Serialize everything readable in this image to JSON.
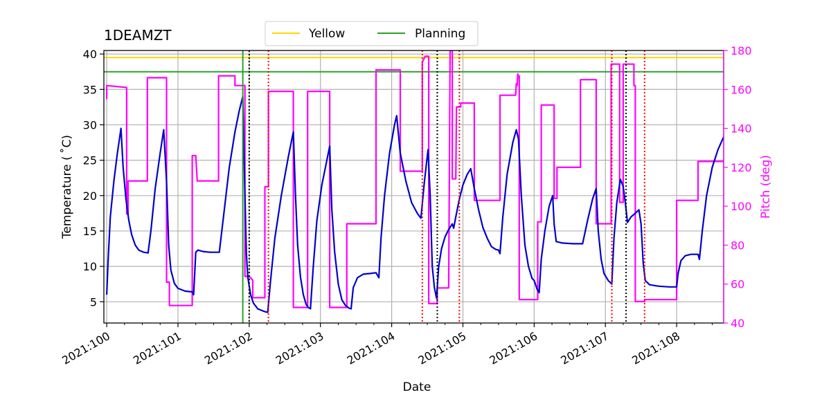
{
  "chart_data": {
    "type": "line",
    "title": "1DEAMZT",
    "xlabel": "Date",
    "ylabel_left": "Temperature ($^\\circ$C)",
    "ylabel_left_display": "Temperature ( ˚C)",
    "ylabel_right": "Pitch (deg)",
    "xlim": [
      99.96,
      108.66
    ],
    "ylim_left": [
      2,
      40.5
    ],
    "ylim_right": [
      40,
      180
    ],
    "grid": true,
    "legend_position": "top-center",
    "x_ticks": [
      {
        "value": 100,
        "label": "2021:100"
      },
      {
        "value": 101,
        "label": "2021:101"
      },
      {
        "value": 102,
        "label": "2021:102"
      },
      {
        "value": 103,
        "label": "2021:103"
      },
      {
        "value": 104,
        "label": "2021:104"
      },
      {
        "value": 105,
        "label": "2021:105"
      },
      {
        "value": 106,
        "label": "2021:106"
      },
      {
        "value": 107,
        "label": "2021:107"
      },
      {
        "value": 108,
        "label": "2021:108"
      }
    ],
    "y_ticks_left": [
      5,
      10,
      15,
      20,
      25,
      30,
      35,
      40
    ],
    "y_ticks_right": [
      40,
      60,
      80,
      100,
      120,
      140,
      160,
      180
    ],
    "colors": {
      "temperature": "#0000cc",
      "pitch": "#ff00ff",
      "pitch_faint": "#c8a2d0",
      "yellow": "#ffd700",
      "planning": "#2ca02c",
      "red_marker": "#ff0000",
      "black_marker": "#000000",
      "grid": "#b0b0b0",
      "right_axis": "#ff00ff"
    },
    "limit_lines": [
      {
        "name": "Yellow",
        "value": 39.5
      },
      {
        "name": "Planning",
        "value": 37.5
      }
    ],
    "planning_vline": 101.91,
    "red_vlines": [
      102.27,
      104.43,
      104.95,
      107.09,
      107.55
    ],
    "black_vlines": [
      102.0,
      104.64,
      107.29
    ],
    "temperature": {
      "name": "1DEAMZT",
      "points": [
        [
          100.0,
          6
        ],
        [
          100.02,
          11
        ],
        [
          100.05,
          17
        ],
        [
          100.1,
          22
        ],
        [
          100.15,
          26
        ],
        [
          100.2,
          29.5
        ],
        [
          100.23,
          24
        ],
        [
          100.27,
          19.5
        ],
        [
          100.31,
          16.5
        ],
        [
          100.35,
          14.5
        ],
        [
          100.4,
          13
        ],
        [
          100.45,
          12.3
        ],
        [
          100.52,
          12
        ],
        [
          100.58,
          11.9
        ],
        [
          100.62,
          15
        ],
        [
          100.68,
          21
        ],
        [
          100.75,
          26
        ],
        [
          100.8,
          29.3
        ],
        [
          100.84,
          22
        ],
        [
          100.87,
          13
        ],
        [
          100.9,
          9.5
        ],
        [
          100.95,
          7.6
        ],
        [
          101.0,
          6.9
        ],
        [
          101.1,
          6.5
        ],
        [
          101.2,
          6.4
        ],
        [
          101.22,
          6
        ],
        [
          101.25,
          12
        ],
        [
          101.28,
          12.3
        ],
        [
          101.35,
          12.1
        ],
        [
          101.45,
          12
        ],
        [
          101.58,
          12
        ],
        [
          101.65,
          18
        ],
        [
          101.72,
          24
        ],
        [
          101.8,
          29
        ],
        [
          101.86,
          32
        ],
        [
          101.91,
          34
        ],
        [
          101.94,
          20
        ],
        [
          101.96,
          12
        ],
        [
          101.98,
          8.5
        ],
        [
          102.02,
          6
        ],
        [
          102.06,
          4.8
        ],
        [
          102.12,
          4
        ],
        [
          102.22,
          3.6
        ],
        [
          102.26,
          3.5
        ],
        [
          102.3,
          8
        ],
        [
          102.36,
          14
        ],
        [
          102.45,
          20
        ],
        [
          102.55,
          25.5
        ],
        [
          102.62,
          29
        ],
        [
          102.65,
          20
        ],
        [
          102.68,
          13
        ],
        [
          102.72,
          8.5
        ],
        [
          102.76,
          6
        ],
        [
          102.8,
          4.6
        ],
        [
          102.83,
          4.2
        ],
        [
          102.86,
          4
        ],
        [
          102.9,
          10
        ],
        [
          102.95,
          16.5
        ],
        [
          103.02,
          21.5
        ],
        [
          103.08,
          24.5
        ],
        [
          103.13,
          27
        ],
        [
          103.16,
          18
        ],
        [
          103.2,
          12
        ],
        [
          103.25,
          7.5
        ],
        [
          103.3,
          5.3
        ],
        [
          103.35,
          4.5
        ],
        [
          103.4,
          4.1
        ],
        [
          103.43,
          4
        ],
        [
          103.46,
          7
        ],
        [
          103.52,
          8.4
        ],
        [
          103.6,
          8.9
        ],
        [
          103.7,
          9
        ],
        [
          103.78,
          9.1
        ],
        [
          103.82,
          8.4
        ],
        [
          103.85,
          14
        ],
        [
          103.9,
          20
        ],
        [
          103.97,
          26
        ],
        [
          104.04,
          30
        ],
        [
          104.07,
          31.3
        ],
        [
          104.12,
          26
        ],
        [
          104.2,
          22
        ],
        [
          104.28,
          19
        ],
        [
          104.36,
          17.5
        ],
        [
          104.41,
          16.8
        ],
        [
          104.46,
          22
        ],
        [
          104.51,
          26.5
        ],
        [
          104.54,
          20
        ],
        [
          104.57,
          10
        ],
        [
          104.6,
          7
        ],
        [
          104.63,
          5.5
        ],
        [
          104.66,
          10
        ],
        [
          104.7,
          12.5
        ],
        [
          104.75,
          14.2
        ],
        [
          104.8,
          15.2
        ],
        [
          104.85,
          16
        ],
        [
          104.87,
          15.4
        ],
        [
          104.9,
          17
        ],
        [
          104.95,
          19.5
        ],
        [
          105.0,
          21.5
        ],
        [
          105.06,
          23
        ],
        [
          105.11,
          23.8
        ],
        [
          105.16,
          21
        ],
        [
          105.22,
          18
        ],
        [
          105.28,
          15.5
        ],
        [
          105.34,
          14
        ],
        [
          105.4,
          12.8
        ],
        [
          105.46,
          12.4
        ],
        [
          105.5,
          12.3
        ],
        [
          105.52,
          11.8
        ],
        [
          105.56,
          17
        ],
        [
          105.62,
          23
        ],
        [
          105.7,
          27.5
        ],
        [
          105.75,
          29.3
        ],
        [
          105.78,
          28
        ],
        [
          105.82,
          20
        ],
        [
          105.87,
          13
        ],
        [
          105.92,
          10
        ],
        [
          105.97,
          8.3
        ],
        [
          106.0,
          8
        ],
        [
          106.04,
          6.8
        ],
        [
          106.07,
          6.3
        ],
        [
          106.1,
          11
        ],
        [
          106.15,
          15
        ],
        [
          106.21,
          18.5
        ],
        [
          106.26,
          20
        ],
        [
          106.28,
          16
        ],
        [
          106.31,
          13.5
        ],
        [
          106.4,
          13.3
        ],
        [
          106.55,
          13.2
        ],
        [
          106.68,
          13.2
        ],
        [
          106.75,
          16.5
        ],
        [
          106.82,
          19.5
        ],
        [
          106.87,
          21
        ],
        [
          106.9,
          15
        ],
        [
          106.94,
          11
        ],
        [
          106.98,
          9
        ],
        [
          107.04,
          8
        ],
        [
          107.09,
          7.5
        ],
        [
          107.12,
          14
        ],
        [
          107.16,
          19
        ],
        [
          107.21,
          22.3
        ],
        [
          107.25,
          21.3
        ],
        [
          107.28,
          19
        ],
        [
          107.31,
          16.2
        ],
        [
          107.36,
          17
        ],
        [
          107.42,
          17.5
        ],
        [
          107.47,
          18
        ],
        [
          107.5,
          16
        ],
        [
          107.53,
          10.5
        ],
        [
          107.56,
          8
        ],
        [
          107.62,
          7.4
        ],
        [
          107.75,
          7.2
        ],
        [
          107.9,
          7.1
        ],
        [
          108.0,
          7.1
        ],
        [
          108.02,
          9
        ],
        [
          108.06,
          10.8
        ],
        [
          108.12,
          11.5
        ],
        [
          108.2,
          11.7
        ],
        [
          108.3,
          11.7
        ],
        [
          108.32,
          11
        ],
        [
          108.36,
          15
        ],
        [
          108.42,
          20
        ],
        [
          108.5,
          24
        ],
        [
          108.58,
          26.5
        ],
        [
          108.66,
          28.3
        ]
      ]
    },
    "pitch": {
      "name": "Pitch",
      "points": [
        [
          100.0,
          155
        ],
        [
          100.0,
          162
        ],
        [
          100.28,
          161
        ],
        [
          100.28,
          96
        ],
        [
          100.3,
          96
        ],
        [
          100.3,
          113
        ],
        [
          100.57,
          113
        ],
        [
          100.57,
          166
        ],
        [
          100.78,
          166
        ],
        [
          100.8,
          166
        ],
        [
          100.84,
          166
        ],
        [
          100.84,
          61
        ],
        [
          100.88,
          61
        ],
        [
          100.88,
          49
        ],
        [
          101.2,
          49
        ],
        [
          101.2,
          126
        ],
        [
          101.25,
          126
        ],
        [
          101.27,
          113
        ],
        [
          101.57,
          113
        ],
        [
          101.57,
          167
        ],
        [
          101.8,
          167
        ],
        [
          101.8,
          162
        ],
        [
          101.9,
          162
        ],
        [
          101.94,
          162
        ],
        [
          101.94,
          64
        ],
        [
          102.0,
          64
        ],
        [
          102.05,
          62
        ],
        [
          102.05,
          53
        ],
        [
          102.22,
          53
        ],
        [
          102.22,
          110
        ],
        [
          102.27,
          110
        ],
        [
          102.27,
          159
        ],
        [
          102.58,
          159
        ],
        [
          102.59,
          159
        ],
        [
          102.62,
          159
        ],
        [
          102.62,
          48
        ],
        [
          102.8,
          48
        ],
        [
          102.82,
          48
        ],
        [
          102.82,
          159
        ],
        [
          102.85,
          159
        ],
        [
          103.11,
          159
        ],
        [
          103.13,
          159
        ],
        [
          103.13,
          48
        ],
        [
          103.27,
          48
        ],
        [
          103.37,
          48
        ],
        [
          103.37,
          91
        ],
        [
          103.78,
          91
        ],
        [
          103.78,
          170
        ],
        [
          104.1,
          170
        ],
        [
          104.12,
          170
        ],
        [
          104.12,
          118
        ],
        [
          104.43,
          118
        ],
        [
          104.43,
          174
        ],
        [
          104.47,
          177
        ],
        [
          104.5,
          177
        ],
        [
          104.52,
          177
        ],
        [
          104.52,
          50
        ],
        [
          104.64,
          50
        ],
        [
          104.64,
          58
        ],
        [
          104.8,
          58
        ],
        [
          104.82,
          180
        ],
        [
          104.85,
          180
        ],
        [
          104.85,
          114
        ],
        [
          104.9,
          114
        ],
        [
          104.91,
          151
        ],
        [
          104.97,
          151
        ],
        [
          104.97,
          153
        ],
        [
          105.16,
          153
        ],
        [
          105.16,
          103
        ],
        [
          105.48,
          103
        ],
        [
          105.5,
          103
        ],
        [
          105.52,
          103
        ],
        [
          105.52,
          157
        ],
        [
          105.74,
          157
        ],
        [
          105.75,
          163
        ],
        [
          105.76,
          162
        ],
        [
          105.77,
          168
        ],
        [
          105.78,
          166
        ],
        [
          105.79,
          167
        ],
        [
          105.79,
          52
        ],
        [
          106.0,
          52
        ],
        [
          106.05,
          52
        ],
        [
          106.05,
          92
        ],
        [
          106.1,
          92
        ],
        [
          106.1,
          152
        ],
        [
          106.28,
          152
        ],
        [
          106.28,
          104
        ],
        [
          106.32,
          104
        ],
        [
          106.32,
          120
        ],
        [
          106.65,
          120
        ],
        [
          106.65,
          165
        ],
        [
          106.87,
          165
        ],
        [
          106.87,
          91
        ],
        [
          107.08,
          91
        ],
        [
          107.08,
          173
        ],
        [
          107.2,
          173
        ],
        [
          107.2,
          102
        ],
        [
          107.25,
          102
        ],
        [
          107.25,
          173
        ],
        [
          107.4,
          173
        ],
        [
          107.4,
          162
        ],
        [
          107.42,
          162
        ],
        [
          107.42,
          51
        ],
        [
          107.55,
          51
        ],
        [
          107.55,
          52
        ],
        [
          107.98,
          52
        ],
        [
          108.0,
          52
        ],
        [
          108.0,
          103
        ],
        [
          108.3,
          103
        ],
        [
          108.3,
          123
        ],
        [
          108.66,
          123
        ]
      ]
    }
  }
}
